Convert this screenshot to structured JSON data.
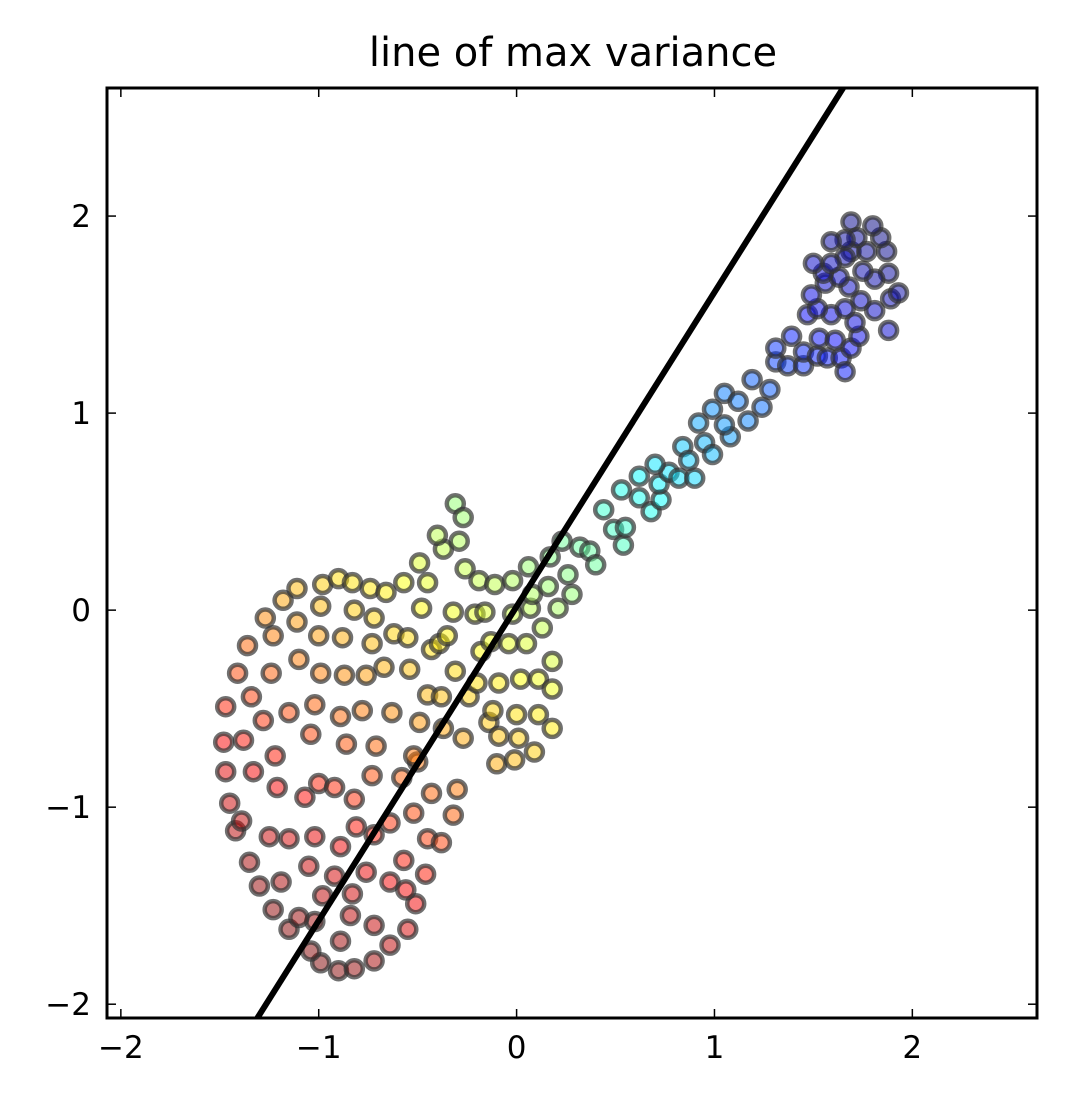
{
  "chart_data": {
    "type": "scatter",
    "title": "line of max variance",
    "xlabel": "",
    "ylabel": "",
    "xlim": [
      -2.07,
      2.63
    ],
    "ylim": [
      -2.07,
      2.65
    ],
    "xticks": [
      -2,
      -1,
      0,
      1,
      2
    ],
    "yticks": [
      -2,
      -1,
      0,
      1,
      2
    ],
    "xtick_labels": [
      "−2",
      "−1",
      "0",
      "1",
      "2"
    ],
    "ytick_labels": [
      "−2",
      "−1",
      "0",
      "1",
      "2"
    ],
    "grid": false,
    "colormap": "jet (red to blue along the shape)",
    "marker_edge_color": "#333333",
    "marker_alpha": 0.5,
    "line": {
      "color": "#000000",
      "points": [
        [
          -1.31,
          -2.07
        ],
        [
          1.65,
          2.65
        ]
      ]
    },
    "series": [
      {
        "points": [
          [
            -0.9,
            -1.83
          ],
          [
            -0.82,
            -1.82
          ],
          [
            -0.72,
            -1.78
          ],
          [
            -0.99,
            -1.79
          ],
          [
            -0.64,
            -1.7
          ],
          [
            -1.04,
            -1.73
          ],
          [
            -0.89,
            -1.68
          ],
          [
            -0.72,
            -1.6
          ],
          [
            -1.15,
            -1.62
          ],
          [
            -1.02,
            -1.58
          ],
          [
            -0.84,
            -1.55
          ],
          [
            -1.23,
            -1.52
          ],
          [
            -1.1,
            -1.56
          ],
          [
            -0.51,
            -1.49
          ],
          [
            -0.55,
            -1.62
          ],
          [
            -1.3,
            -1.4
          ],
          [
            -1.19,
            -1.38
          ],
          [
            -0.98,
            -1.45
          ],
          [
            -0.83,
            -1.44
          ],
          [
            -0.64,
            -1.38
          ],
          [
            -0.56,
            -1.42
          ],
          [
            -0.46,
            -1.34
          ],
          [
            -1.35,
            -1.28
          ],
          [
            -1.05,
            -1.3
          ],
          [
            -0.92,
            -1.35
          ],
          [
            -0.76,
            -1.33
          ],
          [
            -0.57,
            -1.27
          ],
          [
            -1.42,
            -1.12
          ],
          [
            -1.39,
            -1.07
          ],
          [
            -1.25,
            -1.15
          ],
          [
            -1.15,
            -1.16
          ],
          [
            -1.02,
            -1.15
          ],
          [
            -0.89,
            -1.2
          ],
          [
            -0.81,
            -1.1
          ],
          [
            -0.72,
            -1.14
          ],
          [
            -0.64,
            -1.08
          ],
          [
            -0.52,
            -1.03
          ],
          [
            -0.45,
            -1.16
          ],
          [
            -0.38,
            -1.18
          ],
          [
            -0.32,
            -1.04
          ],
          [
            -1.45,
            -0.98
          ],
          [
            -1.47,
            -0.82
          ],
          [
            -1.33,
            -0.82
          ],
          [
            -1.21,
            -0.9
          ],
          [
            -1.07,
            -0.95
          ],
          [
            -1.0,
            -0.88
          ],
          [
            -0.92,
            -0.9
          ],
          [
            -0.82,
            -0.96
          ],
          [
            -0.73,
            -0.84
          ],
          [
            -0.58,
            -0.85
          ],
          [
            -0.5,
            -0.77
          ],
          [
            -0.43,
            -0.93
          ],
          [
            -0.3,
            -0.91
          ],
          [
            -1.48,
            -0.67
          ],
          [
            -1.38,
            -0.66
          ],
          [
            -1.22,
            -0.74
          ],
          [
            -1.04,
            -0.63
          ],
          [
            -0.86,
            -0.68
          ],
          [
            -0.71,
            -0.69
          ],
          [
            -0.52,
            -0.74
          ],
          [
            -0.37,
            -0.6
          ],
          [
            -0.27,
            -0.65
          ],
          [
            -0.14,
            -0.57
          ],
          [
            -0.09,
            -0.64
          ],
          [
            -0.1,
            -0.78
          ],
          [
            -0.01,
            -0.76
          ],
          [
            0.01,
            -0.65
          ],
          [
            0.09,
            -0.72
          ],
          [
            -1.47,
            -0.49
          ],
          [
            -1.34,
            -0.44
          ],
          [
            -1.28,
            -0.56
          ],
          [
            -1.15,
            -0.52
          ],
          [
            -1.02,
            -0.48
          ],
          [
            -0.89,
            -0.54
          ],
          [
            -0.78,
            -0.51
          ],
          [
            -0.63,
            -0.52
          ],
          [
            -0.49,
            -0.57
          ],
          [
            -0.45,
            -0.43
          ],
          [
            -0.38,
            -0.44
          ],
          [
            -0.24,
            -0.44
          ],
          [
            -0.12,
            -0.51
          ],
          [
            0.0,
            -0.53
          ],
          [
            0.11,
            -0.53
          ],
          [
            0.18,
            -0.6
          ],
          [
            -1.41,
            -0.32
          ],
          [
            -1.24,
            -0.32
          ],
          [
            -1.1,
            -0.25
          ],
          [
            -0.99,
            -0.32
          ],
          [
            -0.87,
            -0.33
          ],
          [
            -0.76,
            -0.33
          ],
          [
            -0.67,
            -0.29
          ],
          [
            -0.54,
            -0.3
          ],
          [
            -0.43,
            -0.2
          ],
          [
            -0.31,
            -0.31
          ],
          [
            -0.2,
            -0.37
          ],
          [
            -0.09,
            -0.37
          ],
          [
            0.02,
            -0.35
          ],
          [
            0.11,
            -0.35
          ],
          [
            0.18,
            -0.4
          ],
          [
            -1.36,
            -0.18
          ],
          [
            -1.23,
            -0.13
          ],
          [
            -1.11,
            -0.06
          ],
          [
            -1.0,
            -0.13
          ],
          [
            -0.88,
            -0.14
          ],
          [
            -0.73,
            -0.17
          ],
          [
            -0.62,
            -0.12
          ],
          [
            -0.55,
            -0.14
          ],
          [
            -0.39,
            -0.17
          ],
          [
            -0.35,
            -0.13
          ],
          [
            -0.18,
            -0.21
          ],
          [
            -0.13,
            -0.16
          ],
          [
            -0.04,
            -0.17
          ],
          [
            0.05,
            -0.17
          ],
          [
            0.13,
            -0.09
          ],
          [
            0.18,
            -0.26
          ],
          [
            -1.27,
            -0.04
          ],
          [
            -1.18,
            0.05
          ],
          [
            -0.99,
            0.02
          ],
          [
            -0.82,
            0.0
          ],
          [
            -0.72,
            -0.04
          ],
          [
            -0.48,
            0.01
          ],
          [
            -0.32,
            -0.01
          ],
          [
            -0.21,
            -0.02
          ],
          [
            -0.16,
            -0.01
          ],
          [
            -0.02,
            -0.02
          ],
          [
            0.07,
            0.01
          ],
          [
            0.21,
            0.01
          ],
          [
            -1.11,
            0.11
          ],
          [
            -0.98,
            0.13
          ],
          [
            -0.9,
            0.16
          ],
          [
            -0.83,
            0.14
          ],
          [
            -0.74,
            0.11
          ],
          [
            -0.66,
            0.09
          ],
          [
            -0.57,
            0.14
          ],
          [
            -0.45,
            0.14
          ],
          [
            -0.26,
            0.21
          ],
          [
            -0.19,
            0.15
          ],
          [
            -0.11,
            0.13
          ],
          [
            -0.02,
            0.15
          ],
          [
            0.06,
            0.22
          ],
          [
            0.08,
            0.08
          ],
          [
            0.16,
            0.12
          ],
          [
            0.26,
            0.18
          ],
          [
            0.28,
            0.08
          ],
          [
            -0.49,
            0.24
          ],
          [
            -0.37,
            0.31
          ],
          [
            -0.4,
            0.38
          ],
          [
            -0.29,
            0.35
          ],
          [
            -0.31,
            0.54
          ],
          [
            -0.27,
            0.47
          ],
          [
            0.17,
            0.27
          ],
          [
            0.23,
            0.35
          ],
          [
            0.32,
            0.32
          ],
          [
            0.37,
            0.3
          ],
          [
            0.4,
            0.23
          ],
          [
            0.49,
            0.41
          ],
          [
            0.54,
            0.33
          ],
          [
            0.55,
            0.42
          ],
          [
            0.44,
            0.51
          ],
          [
            0.53,
            0.61
          ],
          [
            0.62,
            0.57
          ],
          [
            0.68,
            0.5
          ],
          [
            0.73,
            0.56
          ],
          [
            0.72,
            0.64
          ],
          [
            0.77,
            0.7
          ],
          [
            0.82,
            0.67
          ],
          [
            0.62,
            0.68
          ],
          [
            0.7,
            0.74
          ],
          [
            0.9,
            0.67
          ],
          [
            0.95,
            0.85
          ],
          [
            0.84,
            0.83
          ],
          [
            0.87,
            0.76
          ],
          [
            0.99,
            0.79
          ],
          [
            1.08,
            0.88
          ],
          [
            0.92,
            0.95
          ],
          [
            1.05,
            0.94
          ],
          [
            0.99,
            1.02
          ],
          [
            1.05,
            1.1
          ],
          [
            1.12,
            1.06
          ],
          [
            1.17,
            0.96
          ],
          [
            1.24,
            1.03
          ],
          [
            1.19,
            1.17
          ],
          [
            1.28,
            1.12
          ],
          [
            1.31,
            1.26
          ],
          [
            1.37,
            1.24
          ],
          [
            1.31,
            1.33
          ],
          [
            1.45,
            1.24
          ],
          [
            1.45,
            1.31
          ],
          [
            1.39,
            1.39
          ],
          [
            1.52,
            1.29
          ],
          [
            1.57,
            1.28
          ],
          [
            1.53,
            1.38
          ],
          [
            1.47,
            1.5
          ],
          [
            1.64,
            1.28
          ],
          [
            1.61,
            1.37
          ],
          [
            1.66,
            1.21
          ],
          [
            1.69,
            1.33
          ],
          [
            1.73,
            1.39
          ],
          [
            1.71,
            1.46
          ],
          [
            1.59,
            1.5
          ],
          [
            1.52,
            1.53
          ],
          [
            1.66,
            1.53
          ],
          [
            1.74,
            1.57
          ],
          [
            1.88,
            1.42
          ],
          [
            1.49,
            1.6
          ],
          [
            1.56,
            1.66
          ],
          [
            1.68,
            1.64
          ],
          [
            1.63,
            1.69
          ],
          [
            1.81,
            1.52
          ],
          [
            1.89,
            1.58
          ],
          [
            1.93,
            1.61
          ],
          [
            1.88,
            1.71
          ],
          [
            1.81,
            1.68
          ],
          [
            1.75,
            1.72
          ],
          [
            1.69,
            1.82
          ],
          [
            1.66,
            1.79
          ],
          [
            1.55,
            1.71
          ],
          [
            1.5,
            1.76
          ],
          [
            1.59,
            1.76
          ],
          [
            1.77,
            1.82
          ],
          [
            1.87,
            1.82
          ],
          [
            1.84,
            1.89
          ],
          [
            1.8,
            1.95
          ],
          [
            1.69,
            1.97
          ],
          [
            1.72,
            1.89
          ],
          [
            1.66,
            1.88
          ],
          [
            1.59,
            1.87
          ]
        ]
      }
    ]
  }
}
